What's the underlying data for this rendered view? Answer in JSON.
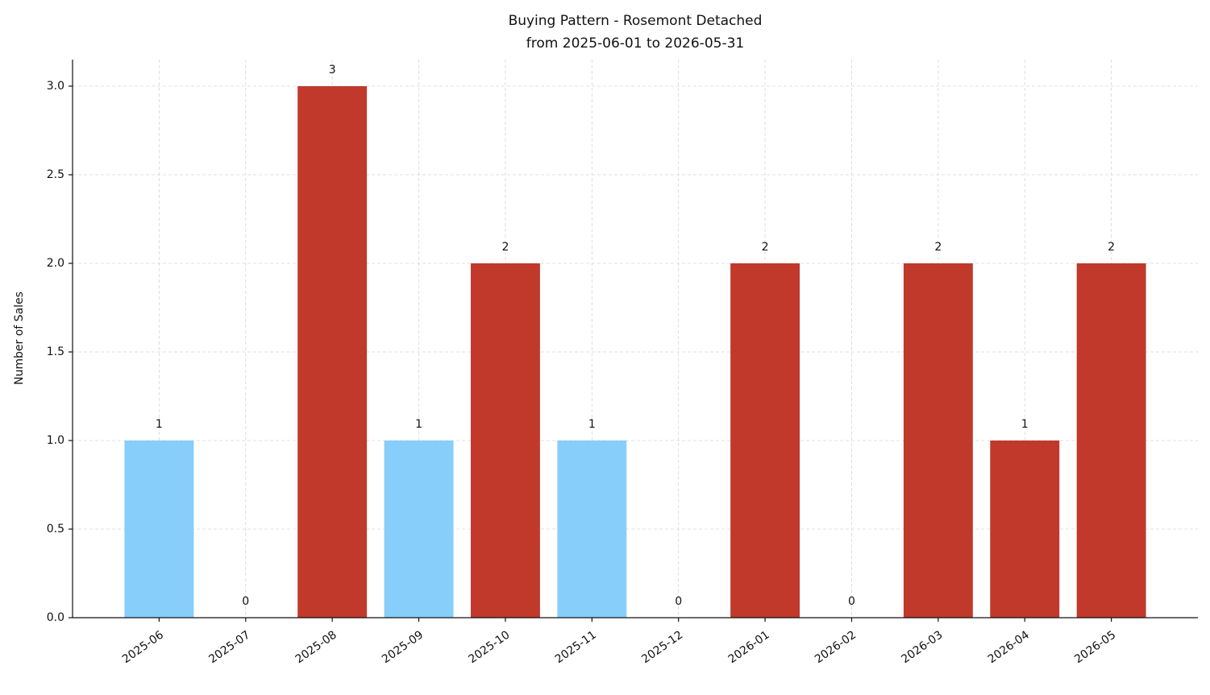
{
  "chart_data": {
    "type": "bar",
    "title": "Buying Pattern - Rosemont Detached",
    "subtitle": "from 2025-06-01 to 2026-05-31",
    "y_label": "Number of Sales",
    "categories": [
      "2025-06",
      "2025-07",
      "2025-08",
      "2025-09",
      "2025-10",
      "2025-11",
      "2025-12",
      "2026-01",
      "2026-02",
      "2026-03",
      "2026-04",
      "2026-05"
    ],
    "values": [
      1,
      0,
      3,
      1,
      2,
      1,
      0,
      2,
      0,
      2,
      1,
      2
    ],
    "colors": [
      "#87cefa",
      "#87cefa",
      "#c0392b",
      "#87cefa",
      "#c0392b",
      "#87cefa",
      "#87cefa",
      "#c0392b",
      "#87cefa",
      "#c0392b",
      "#c0392b",
      "#c0392b"
    ],
    "ylim": [
      0,
      3.15
    ],
    "yticks": [
      {
        "value": 0,
        "label": "0.0"
      },
      0.5,
      {
        "value": 1,
        "label": "1.0"
      },
      1.5,
      {
        "value": 2,
        "label": "2.0"
      },
      2.5,
      {
        "value": 3,
        "label": "3.0"
      }
    ],
    "grid": true
  }
}
